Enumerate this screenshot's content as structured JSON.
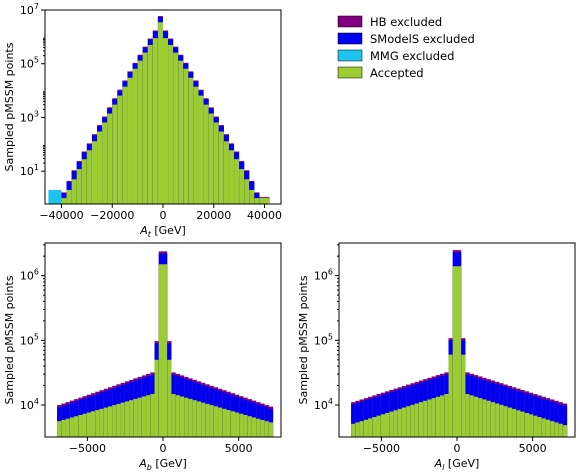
{
  "legend": [
    {
      "label": "HB excluded",
      "color": "#800080"
    },
    {
      "label": "SModelS excluded",
      "color": "#0000ee"
    },
    {
      "label": "MMG excluded",
      "color": "#1ec2ee"
    },
    {
      "label": "Accepted",
      "color": "#9acd32"
    }
  ],
  "chart_data": [
    {
      "type": "bar",
      "subtype": "stacked-step-histogram",
      "xlabel": "A_t [GeV]",
      "ylabel": "Sampled pMSSM points",
      "yscale": "log",
      "xlim": [
        -46500,
        46500
      ],
      "ylim": [
        0.6,
        10000000
      ],
      "xticks": [
        -40000,
        -20000,
        0,
        20000,
        40000
      ],
      "xtick_labels": [
        "−40000",
        "−20000",
        "0",
        "20000",
        "40000"
      ],
      "yticks": [
        10,
        1000,
        100000,
        10000000
      ],
      "ytick_labels": [
        "10^1",
        "10^3",
        "10^5",
        "10^7"
      ],
      "bin_start": -42000,
      "bin_width": 2000,
      "accepted": [
        1,
        1,
        2,
        5,
        12,
        28,
        60,
        130,
        300,
        650,
        1400,
        3000,
        6500,
        14000,
        30000,
        65000,
        130000,
        260000,
        500000,
        900000,
        3500000,
        900000,
        500000,
        260000,
        130000,
        65000,
        30000,
        14000,
        6500,
        3000,
        1400,
        650,
        300,
        130,
        60,
        28,
        12,
        5,
        2,
        1,
        1,
        1
      ],
      "total": [
        1.5,
        1.5,
        4,
        10,
        22,
        50,
        100,
        220,
        480,
        1000,
        2200,
        4800,
        10000,
        22000,
        48000,
        100000,
        200000,
        400000,
        800000,
        1600000,
        5500000,
        1600000,
        800000,
        400000,
        200000,
        100000,
        48000,
        22000,
        10000,
        4800,
        2200,
        1000,
        480,
        220,
        100,
        50,
        22,
        10,
        4,
        1.5,
        1,
        1
      ]
    },
    {
      "type": "bar",
      "subtype": "stacked-step-histogram",
      "xlabel": "A_b [GeV]",
      "ylabel": "Sampled pMSSM points",
      "yscale": "log",
      "xlim": [
        -7800,
        7800
      ],
      "ylim": [
        3200,
        3200000
      ],
      "xticks": [
        -5000,
        0,
        5000
      ],
      "xtick_labels": [
        "−5000",
        "0",
        "5000"
      ],
      "yticks": [
        10000,
        100000,
        1000000
      ],
      "ytick_labels": [
        "10^4",
        "10^5",
        "10^6"
      ],
      "bin_start": -7000,
      "bin_width": 280,
      "accepted_edge": 5500,
      "accepted_mid": 15000,
      "accepted_near": 50000,
      "accepted_peak": 1500000,
      "total_edge": 9000,
      "total_mid": 30000,
      "total_near": 90000,
      "total_peak": 2200000
    },
    {
      "type": "bar",
      "subtype": "stacked-step-histogram",
      "xlabel": "A_l [GeV]",
      "ylabel": "Sampled pMSSM points",
      "yscale": "log",
      "xlim": [
        -7800,
        7800
      ],
      "ylim": [
        3200,
        3200000
      ],
      "xticks": [
        -5000,
        0,
        5000
      ],
      "xtick_labels": [
        "−5000",
        "0",
        "5000"
      ],
      "yticks": [
        10000,
        100000,
        1000000
      ],
      "ytick_labels": [
        "10^4",
        "10^5",
        "10^6"
      ],
      "bin_start": -7000,
      "bin_width": 280,
      "accepted_edge": 5000,
      "accepted_mid": 15000,
      "accepted_near": 60000,
      "accepted_peak": 1400000,
      "total_edge": 10000,
      "total_mid": 30000,
      "total_near": 100000,
      "total_peak": 2300000
    }
  ]
}
